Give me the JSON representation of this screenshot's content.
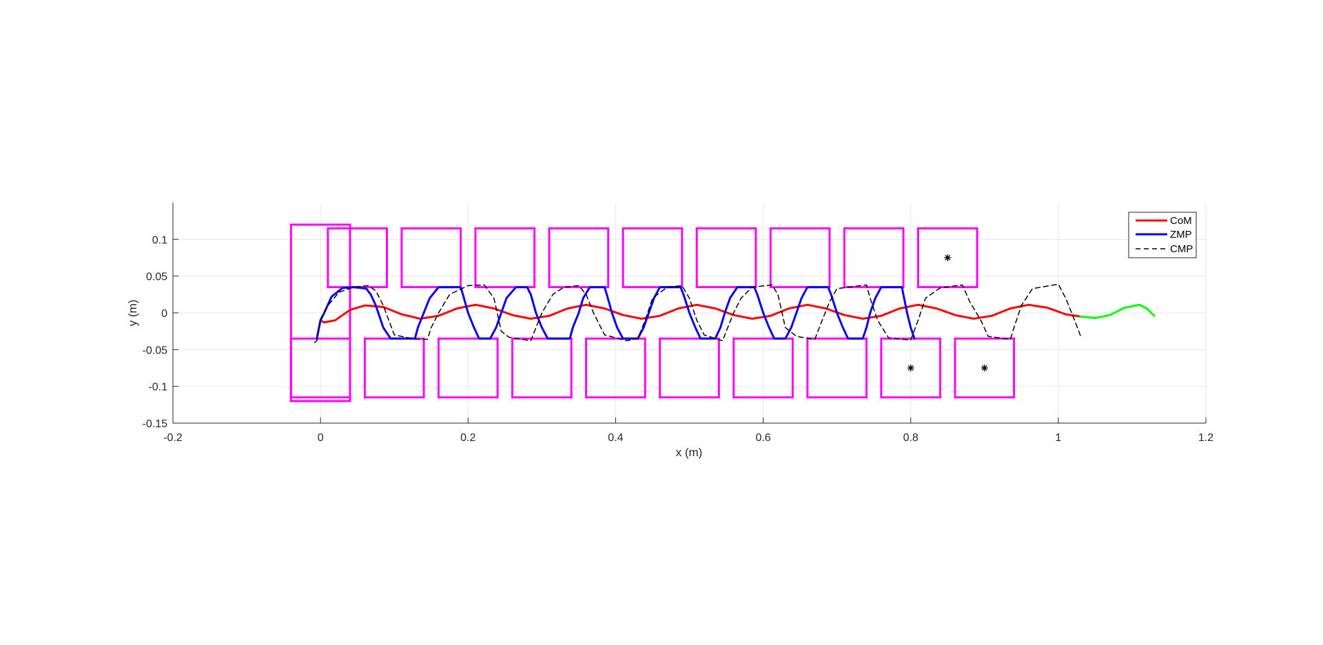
{
  "colors": {
    "com": "#ff0000",
    "com_extension": "#00ff00",
    "zmp": "#0000ff",
    "cmp": "#000000",
    "footstep": "#ff00ff",
    "grid": "#e6e6e6",
    "axis": "#262626"
  },
  "chart_data": {
    "type": "line",
    "title": "",
    "xlabel": "x (m)",
    "ylabel": "y (m)",
    "xlim": [
      -0.2,
      1.2
    ],
    "ylim": [
      -0.15,
      0.15
    ],
    "xticks": [
      -0.2,
      0,
      0.2,
      0.4,
      0.6,
      0.8,
      1,
      1.2
    ],
    "xtick_labels": [
      "-0.2",
      "0",
      "0.2",
      "0.4",
      "0.6",
      "0.8",
      "1",
      "1.2"
    ],
    "yticks": [
      -0.15,
      -0.1,
      -0.05,
      0,
      0.05,
      0.1
    ],
    "ytick_labels": [
      "-0.15",
      "-0.1",
      "-0.05",
      "0",
      "0.05",
      "0.1"
    ],
    "grid": true,
    "legend": {
      "position": "top-right",
      "entries": [
        "CoM",
        "ZMP",
        "CMP"
      ]
    },
    "series": [
      {
        "name": "CoM",
        "points": [
          [
            0.0,
            -0.01
          ],
          [
            0.005,
            -0.013
          ],
          [
            0.02,
            -0.01
          ],
          [
            0.04,
            0.004
          ],
          [
            0.06,
            0.01
          ],
          [
            0.085,
            0.008
          ],
          [
            0.11,
            -0.002
          ],
          [
            0.135,
            -0.008
          ],
          [
            0.16,
            -0.004
          ],
          [
            0.185,
            0.006
          ],
          [
            0.21,
            0.011
          ],
          [
            0.235,
            0.006
          ],
          [
            0.26,
            -0.003
          ],
          [
            0.285,
            -0.008
          ],
          [
            0.31,
            -0.004
          ],
          [
            0.335,
            0.006
          ],
          [
            0.36,
            0.011
          ],
          [
            0.385,
            0.006
          ],
          [
            0.41,
            -0.003
          ],
          [
            0.435,
            -0.008
          ],
          [
            0.46,
            -0.004
          ],
          [
            0.485,
            0.006
          ],
          [
            0.51,
            0.011
          ],
          [
            0.535,
            0.006
          ],
          [
            0.56,
            -0.003
          ],
          [
            0.585,
            -0.008
          ],
          [
            0.61,
            -0.004
          ],
          [
            0.635,
            0.006
          ],
          [
            0.66,
            0.011
          ],
          [
            0.685,
            0.006
          ],
          [
            0.71,
            -0.003
          ],
          [
            0.735,
            -0.008
          ],
          [
            0.76,
            -0.004
          ],
          [
            0.785,
            0.006
          ],
          [
            0.81,
            0.011
          ],
          [
            0.835,
            0.006
          ],
          [
            0.86,
            -0.003
          ],
          [
            0.885,
            -0.008
          ],
          [
            0.91,
            -0.004
          ],
          [
            0.935,
            0.006
          ],
          [
            0.96,
            0.011
          ],
          [
            0.985,
            0.007
          ],
          [
            1.01,
            -0.002
          ],
          [
            1.03,
            -0.005
          ]
        ]
      },
      {
        "name": "",
        "points": [
          [
            1.03,
            -0.005
          ],
          [
            1.05,
            -0.007
          ],
          [
            1.07,
            -0.003
          ],
          [
            1.09,
            0.007
          ],
          [
            1.11,
            0.011
          ],
          [
            1.12,
            0.006
          ],
          [
            1.13,
            -0.004
          ]
        ]
      },
      {
        "name": "ZMP",
        "points": [
          [
            -0.005,
            -0.035
          ],
          [
            0.0,
            -0.01
          ],
          [
            0.005,
            0.0
          ],
          [
            0.015,
            0.022
          ],
          [
            0.03,
            0.034
          ],
          [
            0.045,
            0.035
          ],
          [
            0.062,
            0.033
          ],
          [
            0.068,
            0.025
          ],
          [
            0.075,
            0.01
          ],
          [
            0.085,
            -0.02
          ],
          [
            0.095,
            -0.035
          ],
          [
            0.128,
            -0.035
          ],
          [
            0.132,
            -0.02
          ],
          [
            0.14,
            0.0
          ],
          [
            0.148,
            0.02
          ],
          [
            0.16,
            0.035
          ],
          [
            0.19,
            0.035
          ],
          [
            0.193,
            0.025
          ],
          [
            0.2,
            0.0
          ],
          [
            0.208,
            -0.02
          ],
          [
            0.215,
            -0.035
          ],
          [
            0.23,
            -0.035
          ],
          [
            0.238,
            -0.02
          ],
          [
            0.245,
            0.0
          ],
          [
            0.252,
            0.02
          ],
          [
            0.265,
            0.035
          ],
          [
            0.28,
            0.035
          ],
          [
            0.285,
            0.025
          ],
          [
            0.292,
            0.0
          ],
          [
            0.3,
            -0.02
          ],
          [
            0.308,
            -0.035
          ],
          [
            0.338,
            -0.035
          ],
          [
            0.342,
            -0.02
          ],
          [
            0.35,
            0.0
          ],
          [
            0.356,
            0.02
          ],
          [
            0.365,
            0.035
          ],
          [
            0.385,
            0.035
          ],
          [
            0.388,
            0.025
          ],
          [
            0.395,
            0.0
          ],
          [
            0.402,
            -0.02
          ],
          [
            0.41,
            -0.035
          ],
          [
            0.43,
            -0.035
          ],
          [
            0.438,
            -0.02
          ],
          [
            0.445,
            0.0
          ],
          [
            0.452,
            0.02
          ],
          [
            0.46,
            0.035
          ],
          [
            0.488,
            0.035
          ],
          [
            0.492,
            0.025
          ],
          [
            0.5,
            0.0
          ],
          [
            0.508,
            -0.02
          ],
          [
            0.515,
            -0.035
          ],
          [
            0.535,
            -0.035
          ],
          [
            0.542,
            -0.02
          ],
          [
            0.548,
            0.0
          ],
          [
            0.555,
            0.02
          ],
          [
            0.565,
            0.035
          ],
          [
            0.588,
            0.035
          ],
          [
            0.592,
            0.025
          ],
          [
            0.6,
            0.0
          ],
          [
            0.608,
            -0.02
          ],
          [
            0.615,
            -0.035
          ],
          [
            0.63,
            -0.035
          ],
          [
            0.638,
            -0.02
          ],
          [
            0.645,
            0.0
          ],
          [
            0.652,
            0.02
          ],
          [
            0.66,
            0.035
          ],
          [
            0.688,
            0.035
          ],
          [
            0.692,
            0.025
          ],
          [
            0.7,
            0.0
          ],
          [
            0.708,
            -0.02
          ],
          [
            0.715,
            -0.035
          ],
          [
            0.735,
            -0.035
          ],
          [
            0.74,
            -0.02
          ],
          [
            0.745,
            0.0
          ],
          [
            0.752,
            0.02
          ],
          [
            0.76,
            0.035
          ],
          [
            0.788,
            0.035
          ],
          [
            0.79,
            0.025
          ],
          [
            0.795,
            0.0
          ],
          [
            0.8,
            -0.02
          ],
          [
            0.805,
            -0.035
          ]
        ]
      },
      {
        "name": "CMP",
        "points": [
          [
            -0.008,
            -0.04
          ],
          [
            -0.005,
            -0.038
          ],
          [
            0.0,
            -0.01
          ],
          [
            0.01,
            0.01
          ],
          [
            0.025,
            0.028
          ],
          [
            0.045,
            0.035
          ],
          [
            0.065,
            0.037
          ],
          [
            0.075,
            0.03
          ],
          [
            0.085,
            0.01
          ],
          [
            0.1,
            -0.03
          ],
          [
            0.13,
            -0.036
          ],
          [
            0.145,
            -0.036
          ],
          [
            0.15,
            -0.02
          ],
          [
            0.16,
            0.0
          ],
          [
            0.175,
            0.025
          ],
          [
            0.2,
            0.037
          ],
          [
            0.222,
            0.038
          ],
          [
            0.235,
            0.02
          ],
          [
            0.245,
            -0.025
          ],
          [
            0.255,
            -0.033
          ],
          [
            0.285,
            -0.038
          ],
          [
            0.29,
            -0.025
          ],
          [
            0.3,
            0.0
          ],
          [
            0.315,
            0.025
          ],
          [
            0.33,
            0.035
          ],
          [
            0.35,
            0.037
          ],
          [
            0.36,
            0.025
          ],
          [
            0.37,
            0.0
          ],
          [
            0.385,
            -0.03
          ],
          [
            0.415,
            -0.038
          ],
          [
            0.43,
            -0.035
          ],
          [
            0.44,
            -0.01
          ],
          [
            0.45,
            0.02
          ],
          [
            0.47,
            0.035
          ],
          [
            0.49,
            0.037
          ],
          [
            0.5,
            0.02
          ],
          [
            0.51,
            -0.01
          ],
          [
            0.52,
            -0.03
          ],
          [
            0.545,
            -0.038
          ],
          [
            0.55,
            -0.025
          ],
          [
            0.56,
            0.0
          ],
          [
            0.57,
            0.02
          ],
          [
            0.585,
            0.035
          ],
          [
            0.612,
            0.038
          ],
          [
            0.62,
            0.025
          ],
          [
            0.63,
            -0.02
          ],
          [
            0.645,
            -0.032
          ],
          [
            0.67,
            -0.036
          ],
          [
            0.68,
            -0.01
          ],
          [
            0.69,
            0.015
          ],
          [
            0.7,
            0.033
          ],
          [
            0.74,
            0.038
          ],
          [
            0.745,
            0.02
          ],
          [
            0.755,
            -0.01
          ],
          [
            0.77,
            -0.034
          ],
          [
            0.8,
            -0.037
          ],
          [
            0.81,
            -0.01
          ],
          [
            0.82,
            0.02
          ],
          [
            0.84,
            0.034
          ],
          [
            0.87,
            0.038
          ],
          [
            0.88,
            0.015
          ],
          [
            0.895,
            -0.01
          ],
          [
            0.905,
            -0.032
          ],
          [
            0.935,
            -0.036
          ],
          [
            0.94,
            -0.02
          ],
          [
            0.95,
            0.01
          ],
          [
            0.965,
            0.033
          ],
          [
            1.0,
            0.039
          ],
          [
            1.01,
            0.02
          ],
          [
            1.02,
            -0.005
          ],
          [
            1.03,
            -0.031
          ]
        ]
      }
    ],
    "footsteps": [
      {
        "xlim": [
          -0.04,
          0.04
        ],
        "ylim": [
          -0.12,
          0.12
        ]
      },
      {
        "xlim": [
          -0.04,
          0.04
        ],
        "ylim": [
          -0.115,
          -0.035
        ]
      },
      {
        "xlim": [
          0.01,
          0.09
        ],
        "ylim": [
          0.035,
          0.115
        ]
      },
      {
        "xlim": [
          0.06,
          0.14
        ],
        "ylim": [
          -0.115,
          -0.035
        ]
      },
      {
        "xlim": [
          0.11,
          0.19
        ],
        "ylim": [
          0.035,
          0.115
        ]
      },
      {
        "xlim": [
          0.16,
          0.24
        ],
        "ylim": [
          -0.115,
          -0.035
        ]
      },
      {
        "xlim": [
          0.21,
          0.29
        ],
        "ylim": [
          0.035,
          0.115
        ]
      },
      {
        "xlim": [
          0.26,
          0.34
        ],
        "ylim": [
          -0.115,
          -0.035
        ]
      },
      {
        "xlim": [
          0.31,
          0.39
        ],
        "ylim": [
          0.035,
          0.115
        ]
      },
      {
        "xlim": [
          0.36,
          0.44
        ],
        "ylim": [
          -0.115,
          -0.035
        ]
      },
      {
        "xlim": [
          0.41,
          0.49
        ],
        "ylim": [
          0.035,
          0.115
        ]
      },
      {
        "xlim": [
          0.46,
          0.54
        ],
        "ylim": [
          -0.115,
          -0.035
        ]
      },
      {
        "xlim": [
          0.51,
          0.59
        ],
        "ylim": [
          0.035,
          0.115
        ]
      },
      {
        "xlim": [
          0.56,
          0.64
        ],
        "ylim": [
          -0.115,
          -0.035
        ]
      },
      {
        "xlim": [
          0.61,
          0.69
        ],
        "ylim": [
          0.035,
          0.115
        ]
      },
      {
        "xlim": [
          0.66,
          0.74
        ],
        "ylim": [
          -0.115,
          -0.035
        ]
      },
      {
        "xlim": [
          0.71,
          0.79
        ],
        "ylim": [
          0.035,
          0.115
        ]
      },
      {
        "xlim": [
          0.76,
          0.84
        ],
        "ylim": [
          -0.115,
          -0.035
        ]
      },
      {
        "xlim": [
          0.81,
          0.89
        ],
        "ylim": [
          0.035,
          0.115
        ]
      },
      {
        "xlim": [
          0.86,
          0.94
        ],
        "ylim": [
          -0.115,
          -0.035
        ]
      }
    ],
    "markers": [
      {
        "x": 0.85,
        "y": 0.075
      },
      {
        "x": 0.8,
        "y": -0.075
      },
      {
        "x": 0.9,
        "y": -0.075
      }
    ]
  }
}
